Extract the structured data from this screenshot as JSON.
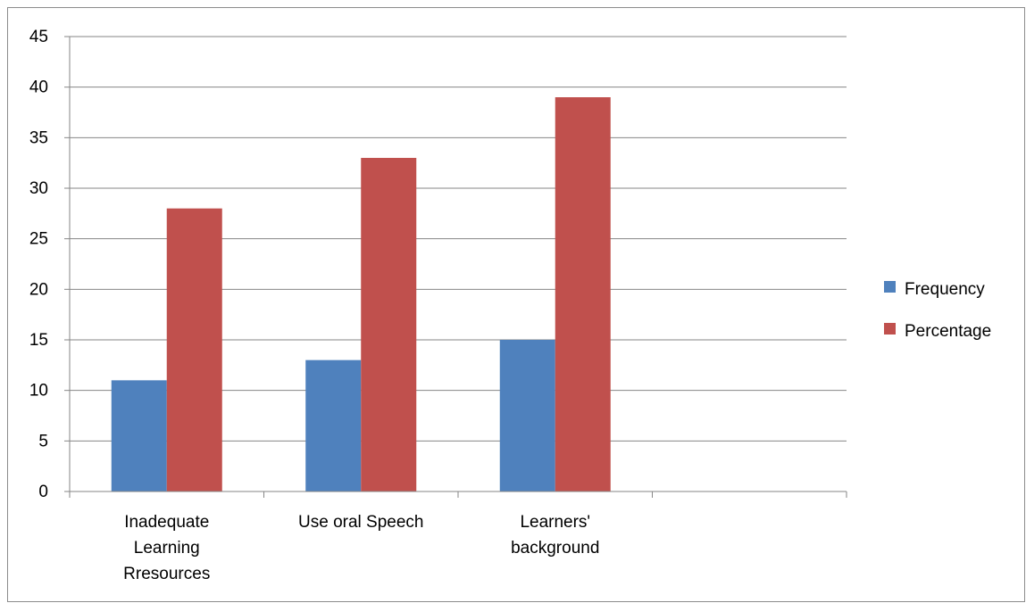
{
  "chart_data": {
    "type": "bar",
    "categories": [
      [
        "Inadequate",
        "Learning",
        "Rresources"
      ],
      [
        "Use oral Speech"
      ],
      [
        "Learners'",
        "background"
      ],
      []
    ],
    "series": [
      {
        "name": "Frequency",
        "color": "#4f81bd",
        "values": [
          11,
          13,
          15,
          null
        ]
      },
      {
        "name": "Percentage",
        "color": "#c0504d",
        "values": [
          28,
          33,
          39,
          null
        ]
      }
    ],
    "ylim": [
      0,
      45
    ],
    "ytick_step": 5,
    "yticks": [
      "0",
      "5",
      "10",
      "15",
      "20",
      "25",
      "30",
      "35",
      "40",
      "45"
    ],
    "grid": true,
    "legend_position": "right",
    "title": "",
    "xlabel": "",
    "ylabel": ""
  }
}
